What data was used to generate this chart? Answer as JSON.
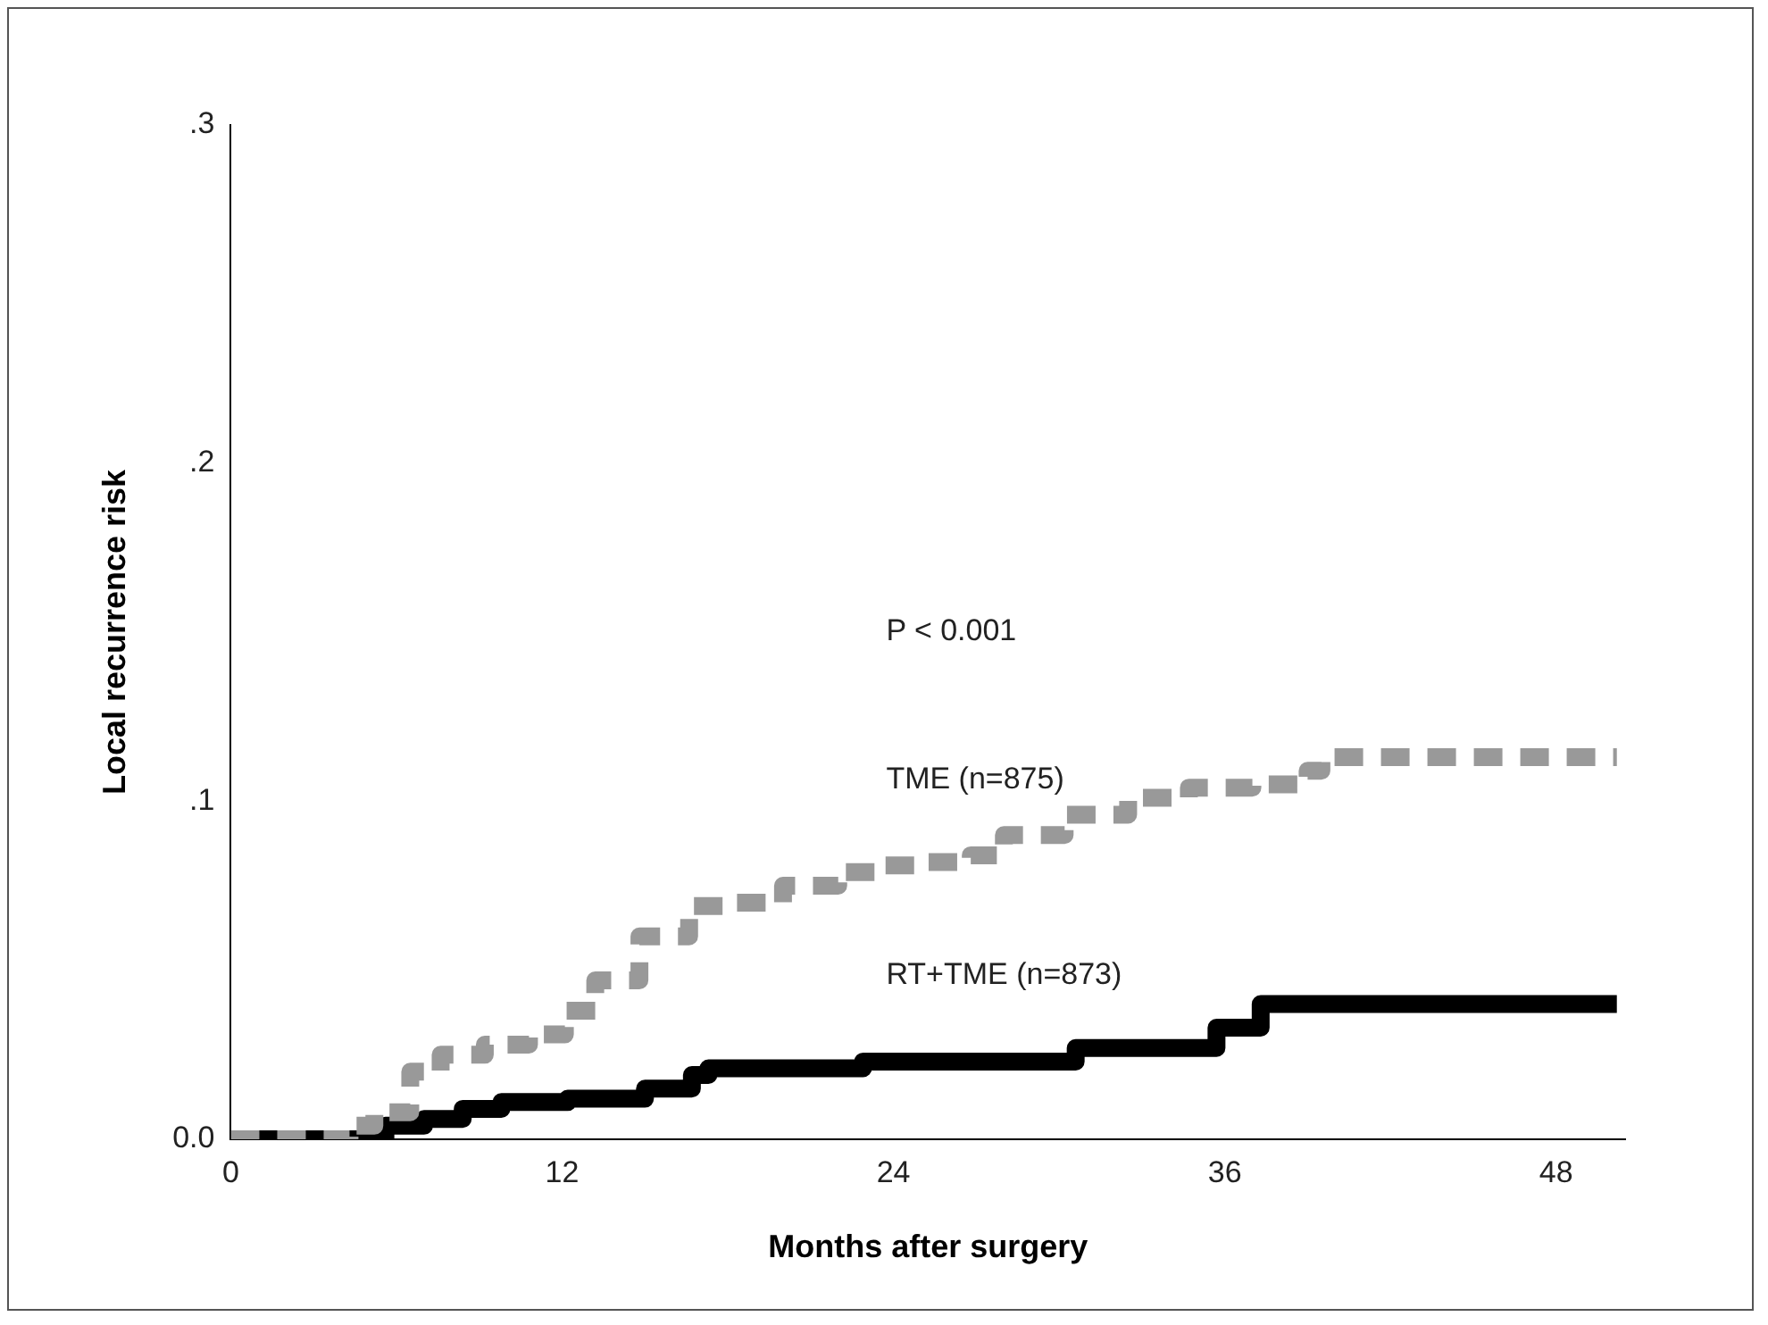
{
  "chart_data": {
    "type": "step",
    "xlabel": "Months after surgery",
    "ylabel": "Local recurrence risk",
    "xlim": [
      0,
      50.5
    ],
    "ylim": [
      0,
      0.3
    ],
    "xticks": [
      0,
      12,
      24,
      36,
      48
    ],
    "yticks": [
      {
        "value": 0,
        "label": "0.0"
      },
      {
        "value": 0.1,
        "label": ".1"
      },
      {
        "value": 0.2,
        "label": ".2"
      },
      {
        "value": 0.3,
        "label": ".3"
      }
    ],
    "grid": false,
    "legend": false,
    "marker": "none",
    "annotations": [
      "P < 0.001"
    ],
    "series": [
      {
        "name": "TME (n=875)",
        "color": "#999999",
        "line_style": "dashed",
        "x": [
          0,
          3.5,
          4.3,
          5.2,
          6.5,
          7.6,
          9.2,
          10.8,
          12.1,
          13.2,
          14.8,
          16.6,
          18,
          20,
          22,
          23.5,
          24.8,
          26.8,
          28,
          30.2,
          32.5,
          34.7,
          37,
          39,
          39.5,
          50.2
        ],
        "values": [
          0,
          0,
          0.004,
          0.008,
          0.02,
          0.025,
          0.028,
          0.031,
          0.038,
          0.047,
          0.06,
          0.069,
          0.07,
          0.075,
          0.079,
          0.081,
          0.082,
          0.084,
          0.09,
          0.096,
          0.101,
          0.104,
          0.105,
          0.109,
          0.113,
          0.113
        ]
      },
      {
        "name": "RT+TME (n=873)",
        "color": "#000000",
        "line_style": "solid",
        "x": [
          0,
          5.6,
          7,
          8.4,
          9.8,
          12.2,
          15,
          16.7,
          17.3,
          22.9,
          30.6,
          35.7,
          37.3,
          50.2
        ],
        "values": [
          0,
          0.004,
          0.006,
          0.009,
          0.011,
          0.012,
          0.015,
          0.019,
          0.021,
          0.023,
          0.027,
          0.033,
          0.04,
          0.04
        ]
      }
    ]
  }
}
